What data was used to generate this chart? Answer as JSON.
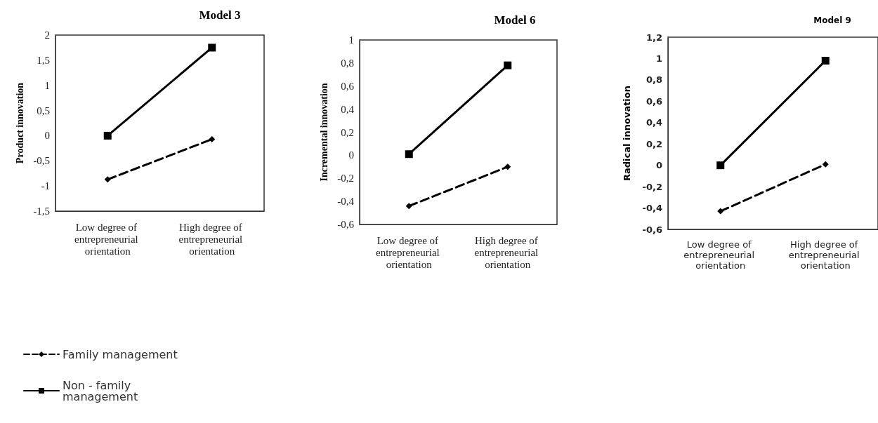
{
  "chart_data": [
    {
      "type": "line",
      "title": "Model 3",
      "ylabel": "Product innovation",
      "categories": [
        "Low degree of entrepreneurial orientation",
        "High degree of entrepreneurial orientation"
      ],
      "series": [
        {
          "name": "Family management",
          "color": "#000000",
          "values": [
            -0.87,
            -0.07
          ],
          "marker": "diamond",
          "line_style": "dashed"
        },
        {
          "name": "Non - family management",
          "color": "#000000",
          "values": [
            0,
            1.75
          ],
          "marker": "square",
          "line_style": "solid"
        }
      ],
      "ylim": [
        -1.5,
        2
      ],
      "yticks": [
        {
          "value": -1.5,
          "label": "-1,5"
        },
        -1,
        {
          "value": -0.5,
          "label": "-0,5"
        },
        0,
        {
          "value": 0.5,
          "label": "0,5"
        },
        1,
        {
          "value": 1.5,
          "label": "1,5"
        },
        2
      ],
      "grid": false,
      "legend": "bottom left"
    },
    {
      "type": "line",
      "title": "Model 6",
      "ylabel": "Incremental innovation",
      "categories": [
        "Low degree of entrepreneurial orientation",
        "High degree of entrepreneurial orientation"
      ],
      "series": [
        {
          "color": "#000000",
          "values": [
            -0.44,
            -0.1
          ],
          "marker": "diamond",
          "line_style": "dashed"
        },
        {
          "color": "#000000",
          "values": [
            0.01,
            0.78
          ],
          "marker": "square",
          "line_style": "solid"
        }
      ],
      "ylim": [
        -0.6,
        1
      ],
      "yticks": [
        {
          "value": -0.6,
          "label": "-0,6"
        },
        {
          "value": -0.4,
          "label": "-0,4"
        },
        {
          "value": -0.2,
          "label": "-0,2"
        },
        0,
        {
          "value": 0.2,
          "label": "0,2"
        },
        {
          "value": 0.4,
          "label": "0,4"
        },
        {
          "value": 0.6,
          "label": "0,6"
        },
        {
          "value": 0.8,
          "label": "0,8"
        },
        1
      ],
      "grid": false,
      "legend": false
    },
    {
      "type": "line",
      "title": "Model 9",
      "ylabel": "Radical innovation",
      "categories": [
        "Low degree of entrepreneurial orientation",
        "High degree of entrepreneurial orientation"
      ],
      "series": [
        {
          "color": "#000000",
          "values": [
            -0.43,
            0.01
          ],
          "marker": "diamond",
          "line_style": "dashed"
        },
        {
          "color": "#000000",
          "values": [
            0,
            0.98
          ],
          "marker": "square",
          "line_style": "solid"
        }
      ],
      "ylim": [
        -0.6,
        1.2
      ],
      "yticks": [
        {
          "value": -0.6,
          "label": "-0,6"
        },
        {
          "value": -0.4,
          "label": "-0,4"
        },
        {
          "value": -0.2,
          "label": "-0,2"
        },
        0,
        {
          "value": 0.2,
          "label": "0,2"
        },
        {
          "value": 0.4,
          "label": "0,4"
        },
        {
          "value": 0.6,
          "label": "0,6"
        },
        {
          "value": 0.8,
          "label": "0,8"
        },
        1,
        {
          "value": 1.2,
          "label": "1,2"
        }
      ],
      "grid": false,
      "legend": false
    }
  ]
}
